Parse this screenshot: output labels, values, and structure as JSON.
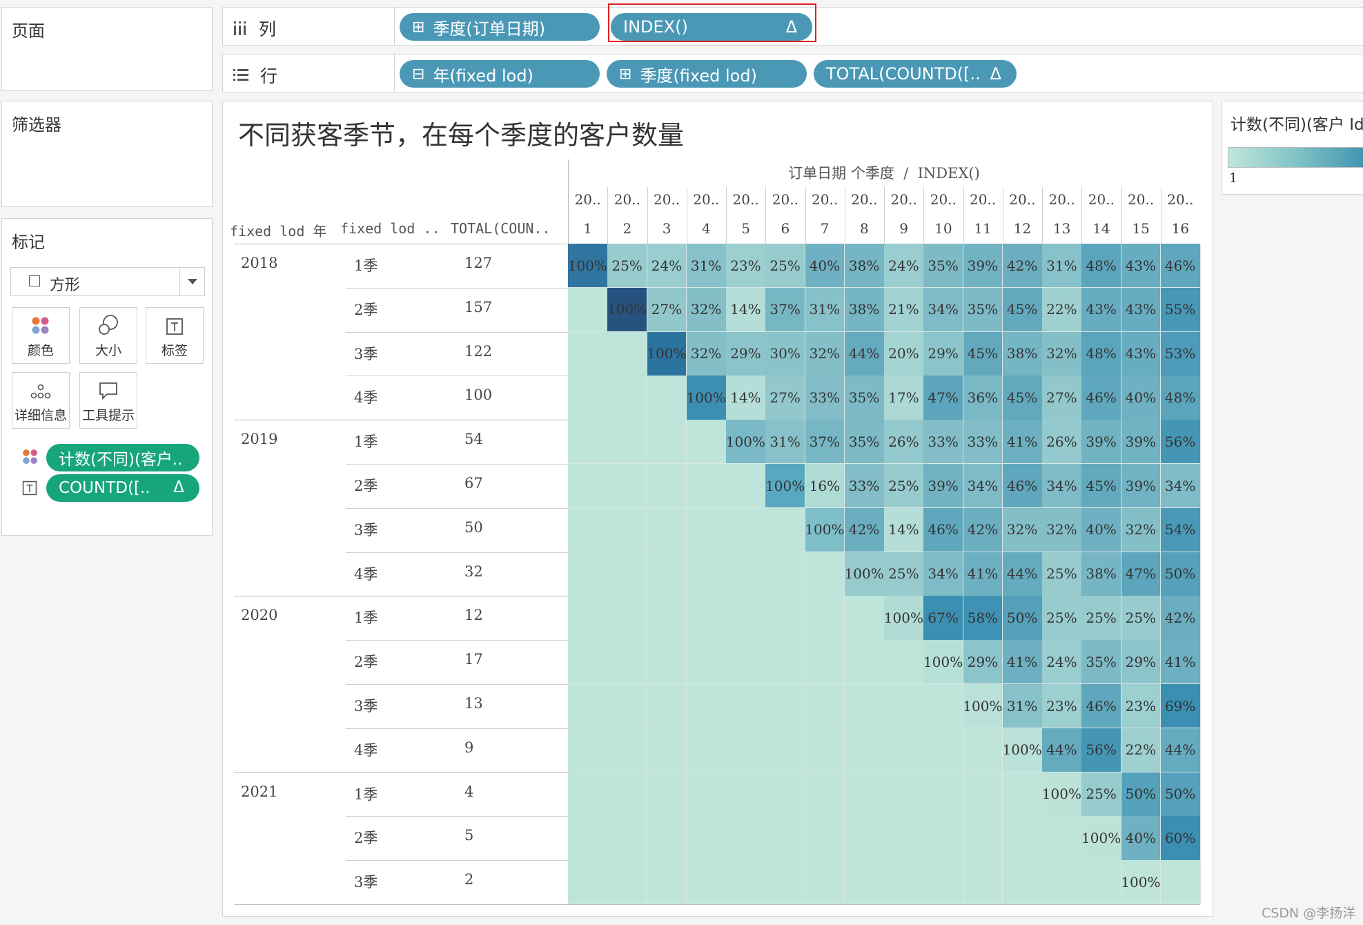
{
  "pages_panel": {
    "title": "页面"
  },
  "filters_panel": {
    "title": "筛选器"
  },
  "marks_panel": {
    "title": "标记",
    "mark_type": "方形",
    "buttons": [
      {
        "label": "颜色",
        "icon": "color-dots-icon"
      },
      {
        "label": "大小",
        "icon": "size-circles-icon"
      },
      {
        "label": "标签",
        "icon": "label-t-icon"
      },
      {
        "label": "详细信息",
        "icon": "detail-dots-icon"
      },
      {
        "label": "工具提示",
        "icon": "tooltip-bubble-icon"
      }
    ],
    "fields": [
      {
        "label": "计数(不同)(客户..",
        "icon": "color-dots-icon"
      },
      {
        "label": "COUNTD([..",
        "delta": "Δ",
        "icon": "label-t-icon"
      }
    ]
  },
  "columns_shelf": {
    "label": "列",
    "pills": [
      {
        "label": "季度(订单日期)",
        "prefix": "⊞"
      },
      {
        "label": "INDEX()",
        "delta": "Δ"
      }
    ]
  },
  "rows_shelf": {
    "label": "行",
    "pills": [
      {
        "label": "年(fixed lod)",
        "prefix": "⊟"
      },
      {
        "label": "季度(fixed lod)",
        "prefix": "⊞"
      },
      {
        "label": "TOTAL(COUNTD([..",
        "delta": "Δ"
      }
    ]
  },
  "legend": {
    "title": "计数(不同)(客户 Id",
    "min_label": "1"
  },
  "viz": {
    "title": "不同获客季节，在每个季度的客户数量",
    "col_header_title": "订单日期 个季度  /  INDEX()",
    "row_headers": [
      "fixed lod 年",
      "fixed lod ..",
      "TOTAL(COUN.."
    ],
    "col_top_labels": [
      "20..",
      "20..",
      "20..",
      "20..",
      "20..",
      "20..",
      "20..",
      "20..",
      "20..",
      "20..",
      "20..",
      "20..",
      "20..",
      "20..",
      "20..",
      "20.."
    ],
    "col_index_labels": [
      "1",
      "2",
      "3",
      "4",
      "5",
      "6",
      "7",
      "8",
      "9",
      "10",
      "11",
      "12",
      "13",
      "14",
      "15",
      "16"
    ],
    "rows": [
      {
        "year": "2018",
        "quarter": "1季",
        "total": "127",
        "cells": [
          "100%",
          "25%",
          "24%",
          "31%",
          "23%",
          "25%",
          "40%",
          "38%",
          "24%",
          "35%",
          "39%",
          "42%",
          "31%",
          "48%",
          "43%",
          "46%"
        ]
      },
      {
        "year": "",
        "quarter": "2季",
        "total": "157",
        "cells": [
          "",
          "100%",
          "27%",
          "32%",
          "14%",
          "37%",
          "31%",
          "38%",
          "21%",
          "34%",
          "35%",
          "45%",
          "22%",
          "43%",
          "43%",
          "55%"
        ]
      },
      {
        "year": "",
        "quarter": "3季",
        "total": "122",
        "cells": [
          "",
          "",
          "100%",
          "32%",
          "29%",
          "30%",
          "32%",
          "44%",
          "20%",
          "29%",
          "45%",
          "38%",
          "32%",
          "48%",
          "43%",
          "53%"
        ]
      },
      {
        "year": "",
        "quarter": "4季",
        "total": "100",
        "cells": [
          "",
          "",
          "",
          "100%",
          "14%",
          "27%",
          "33%",
          "35%",
          "17%",
          "47%",
          "36%",
          "45%",
          "27%",
          "46%",
          "40%",
          "48%"
        ]
      },
      {
        "year": "2019",
        "quarter": "1季",
        "total": "54",
        "cells": [
          "",
          "",
          "",
          "",
          "100%",
          "31%",
          "37%",
          "35%",
          "26%",
          "33%",
          "33%",
          "41%",
          "26%",
          "39%",
          "39%",
          "56%"
        ]
      },
      {
        "year": "",
        "quarter": "2季",
        "total": "67",
        "cells": [
          "",
          "",
          "",
          "",
          "",
          "100%",
          "16%",
          "33%",
          "25%",
          "39%",
          "34%",
          "46%",
          "34%",
          "45%",
          "39%",
          "34%"
        ]
      },
      {
        "year": "",
        "quarter": "3季",
        "total": "50",
        "cells": [
          "",
          "",
          "",
          "",
          "",
          "",
          "100%",
          "42%",
          "14%",
          "46%",
          "42%",
          "32%",
          "32%",
          "40%",
          "32%",
          "54%"
        ]
      },
      {
        "year": "",
        "quarter": "4季",
        "total": "32",
        "cells": [
          "",
          "",
          "",
          "",
          "",
          "",
          "",
          "100%",
          "25%",
          "34%",
          "41%",
          "44%",
          "25%",
          "38%",
          "47%",
          "50%"
        ]
      },
      {
        "year": "2020",
        "quarter": "1季",
        "total": "12",
        "cells": [
          "",
          "",
          "",
          "",
          "",
          "",
          "",
          "",
          "100%",
          "67%",
          "58%",
          "50%",
          "25%",
          "25%",
          "25%",
          "42%"
        ]
      },
      {
        "year": "",
        "quarter": "2季",
        "total": "17",
        "cells": [
          "",
          "",
          "",
          "",
          "",
          "",
          "",
          "",
          "",
          "100%",
          "29%",
          "41%",
          "24%",
          "35%",
          "29%",
          "41%"
        ]
      },
      {
        "year": "",
        "quarter": "3季",
        "total": "13",
        "cells": [
          "",
          "",
          "",
          "",
          "",
          "",
          "",
          "",
          "",
          "",
          "100%",
          "31%",
          "23%",
          "46%",
          "23%",
          "69%"
        ]
      },
      {
        "year": "",
        "quarter": "4季",
        "total": "9",
        "cells": [
          "",
          "",
          "",
          "",
          "",
          "",
          "",
          "",
          "",
          "",
          "",
          "100%",
          "44%",
          "56%",
          "22%",
          "44%"
        ]
      },
      {
        "year": "2021",
        "quarter": "1季",
        "total": "4",
        "cells": [
          "",
          "",
          "",
          "",
          "",
          "",
          "",
          "",
          "",
          "",
          "",
          "",
          "100%",
          "25%",
          "50%",
          "50%"
        ]
      },
      {
        "year": "",
        "quarter": "2季",
        "total": "5",
        "cells": [
          "",
          "",
          "",
          "",
          "",
          "",
          "",
          "",
          "",
          "",
          "",
          "",
          "",
          "100%",
          "40%",
          "60%"
        ]
      },
      {
        "year": "",
        "quarter": "3季",
        "total": "2",
        "cells": [
          "",
          "",
          "",
          "",
          "",
          "",
          "",
          "",
          "",
          "",
          "",
          "",
          "",
          "",
          "100%",
          ""
        ]
      }
    ]
  },
  "colors": {
    "pill_blue": "#4a98b6",
    "pill_green": "#17a57b",
    "highlight_red": "#e02020",
    "cell_base": "#bfe5da",
    "cell_dark": "#2a5c86"
  },
  "watermark": "CSDN @李扬洋"
}
